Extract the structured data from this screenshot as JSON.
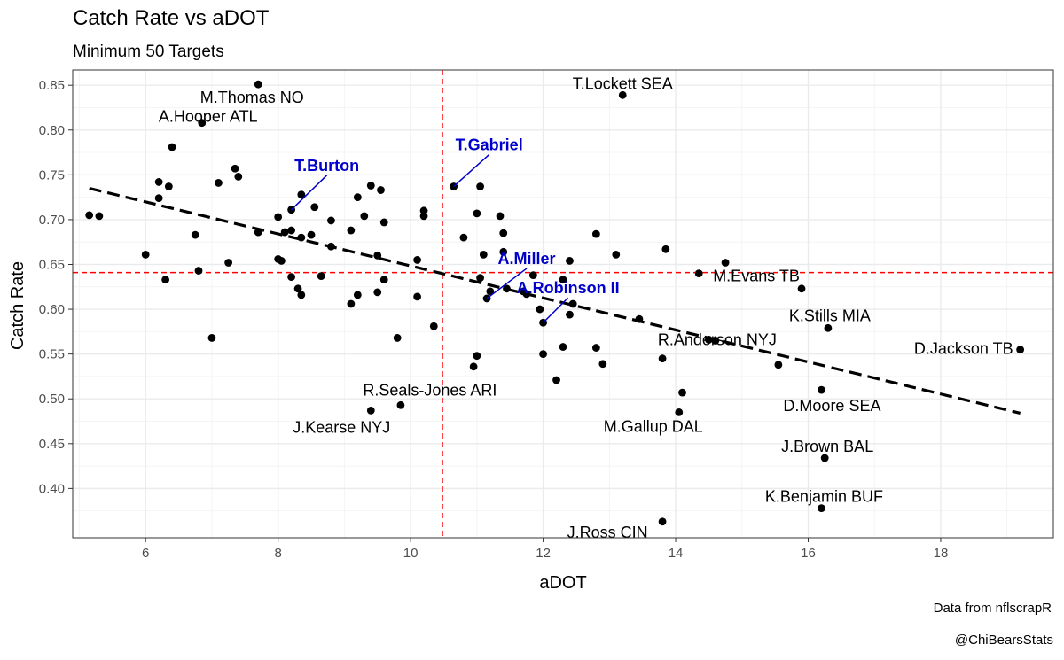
{
  "chart_data": {
    "type": "scatter",
    "title": "Catch Rate vs aDOT",
    "subtitle": "Minimum 50 Targets",
    "xlabel": "aDOT",
    "ylabel": "Catch Rate",
    "xlim": [
      4.9,
      19.7
    ],
    "ylim": [
      0.345,
      0.867
    ],
    "x_ticks": [
      6,
      8,
      10,
      12,
      14,
      16,
      18
    ],
    "y_ticks": [
      0.4,
      0.45,
      0.5,
      0.55,
      0.6,
      0.65,
      0.7,
      0.75,
      0.8,
      0.85
    ],
    "grid": true,
    "reference_lines": {
      "x_mean": 10.48,
      "y_mean": 0.641,
      "color": "#ff0000"
    },
    "trend_line": {
      "x": [
        5.15,
        19.2
      ],
      "y": [
        0.735,
        0.484
      ]
    },
    "points": [
      [
        7.7,
        0.851
      ],
      [
        6.85,
        0.808
      ],
      [
        6.4,
        0.781
      ],
      [
        7.35,
        0.757
      ],
      [
        7.4,
        0.748
      ],
      [
        6.2,
        0.742
      ],
      [
        6.35,
        0.737
      ],
      [
        7.1,
        0.741
      ],
      [
        6.2,
        0.724
      ],
      [
        5.15,
        0.705
      ],
      [
        5.3,
        0.704
      ],
      [
        6.0,
        0.661
      ],
      [
        6.3,
        0.633
      ],
      [
        6.8,
        0.643
      ],
      [
        6.75,
        0.683
      ],
      [
        7.0,
        0.568
      ],
      [
        7.25,
        0.652
      ],
      [
        7.7,
        0.686
      ],
      [
        8.2,
        0.711
      ],
      [
        8.0,
        0.703
      ],
      [
        8.1,
        0.686
      ],
      [
        8.2,
        0.688
      ],
      [
        8.35,
        0.728
      ],
      [
        8.55,
        0.714
      ],
      [
        8.0,
        0.656
      ],
      [
        8.05,
        0.654
      ],
      [
        8.35,
        0.68
      ],
      [
        8.5,
        0.683
      ],
      [
        8.2,
        0.636
      ],
      [
        8.3,
        0.623
      ],
      [
        8.35,
        0.616
      ],
      [
        8.65,
        0.637
      ],
      [
        8.8,
        0.699
      ],
      [
        8.8,
        0.67
      ],
      [
        9.1,
        0.688
      ],
      [
        9.2,
        0.725
      ],
      [
        9.3,
        0.704
      ],
      [
        9.4,
        0.738
      ],
      [
        9.55,
        0.733
      ],
      [
        9.5,
        0.66
      ],
      [
        9.6,
        0.697
      ],
      [
        9.6,
        0.633
      ],
      [
        9.5,
        0.619
      ],
      [
        9.2,
        0.616
      ],
      [
        9.1,
        0.606
      ],
      [
        9.8,
        0.568
      ],
      [
        10.1,
        0.655
      ],
      [
        10.2,
        0.71
      ],
      [
        10.2,
        0.704
      ],
      [
        10.1,
        0.614
      ],
      [
        10.35,
        0.581
      ],
      [
        10.65,
        0.737
      ],
      [
        11.05,
        0.737
      ],
      [
        10.8,
        0.68
      ],
      [
        11.0,
        0.707
      ],
      [
        11.1,
        0.661
      ],
      [
        11.35,
        0.704
      ],
      [
        11.4,
        0.685
      ],
      [
        11.4,
        0.664
      ],
      [
        11.05,
        0.635
      ],
      [
        11.15,
        0.612
      ],
      [
        11.45,
        0.623
      ],
      [
        11.2,
        0.62
      ],
      [
        11.7,
        0.62
      ],
      [
        11.75,
        0.617
      ],
      [
        11.85,
        0.638
      ],
      [
        11.95,
        0.6
      ],
      [
        12.0,
        0.585
      ],
      [
        12.3,
        0.633
      ],
      [
        12.4,
        0.654
      ],
      [
        12.4,
        0.594
      ],
      [
        12.45,
        0.606
      ],
      [
        12.8,
        0.684
      ],
      [
        13.1,
        0.661
      ],
      [
        12.0,
        0.55
      ],
      [
        12.3,
        0.558
      ],
      [
        12.8,
        0.557
      ],
      [
        12.9,
        0.539
      ],
      [
        11.0,
        0.548
      ],
      [
        10.95,
        0.536
      ],
      [
        12.2,
        0.521
      ],
      [
        13.45,
        0.589
      ],
      [
        13.85,
        0.667
      ],
      [
        14.35,
        0.64
      ],
      [
        14.75,
        0.652
      ],
      [
        13.8,
        0.545
      ],
      [
        14.5,
        0.566
      ],
      [
        14.6,
        0.565
      ],
      [
        15.55,
        0.538
      ],
      [
        15.9,
        0.623
      ],
      [
        16.3,
        0.579
      ],
      [
        14.1,
        0.507
      ],
      [
        14.05,
        0.485
      ],
      [
        16.2,
        0.51
      ],
      [
        9.85,
        0.493
      ],
      [
        9.4,
        0.487
      ],
      [
        16.25,
        0.434
      ],
      [
        16.2,
        0.378
      ],
      [
        13.8,
        0.363
      ],
      [
        19.2,
        0.555
      ],
      [
        13.2,
        0.839
      ]
    ],
    "labels": [
      {
        "text": "M.Thomas NO",
        "x": 7.7,
        "y": 0.851,
        "dx": -7,
        "dy": 21,
        "anchor": "middle",
        "highlight": false
      },
      {
        "text": "A.Hooper ATL",
        "x": 6.85,
        "y": 0.808,
        "dx": 7,
        "dy": -1,
        "anchor": "middle",
        "highlight": false
      },
      {
        "text": "T.Lockett SEA",
        "x": 13.2,
        "y": 0.839,
        "dx": 0,
        "dy": -7,
        "anchor": "middle",
        "highlight": false
      },
      {
        "text": "M.Evans TB",
        "x": 14.35,
        "y": 0.64,
        "dx": 16,
        "dy": 9,
        "anchor": "start",
        "highlight": false
      },
      {
        "text": "K.Stills MIA",
        "x": 16.3,
        "y": 0.579,
        "dx": 2,
        "dy": -8,
        "anchor": "middle",
        "highlight": false
      },
      {
        "text": "D.Jackson TB",
        "x": 19.2,
        "y": 0.555,
        "dx": -8,
        "dy": 5,
        "anchor": "end",
        "highlight": false
      },
      {
        "text": "R.Anderson NYJ",
        "x": 14.6,
        "y": 0.565,
        "dx": 2,
        "dy": 5,
        "anchor": "middle",
        "highlight": false
      },
      {
        "text": "D.Moore SEA",
        "x": 16.2,
        "y": 0.51,
        "dx": 12,
        "dy": 24,
        "anchor": "middle",
        "highlight": false
      },
      {
        "text": "J.Brown BAL",
        "x": 16.25,
        "y": 0.434,
        "dx": 3,
        "dy": -7,
        "anchor": "middle",
        "highlight": false
      },
      {
        "text": "K.Benjamin BUF",
        "x": 16.2,
        "y": 0.378,
        "dx": 3,
        "dy": -7,
        "anchor": "middle",
        "highlight": false
      },
      {
        "text": "J.Ross CIN",
        "x": 13.8,
        "y": 0.363,
        "dx": -62,
        "dy": 18,
        "anchor": "middle",
        "highlight": false
      },
      {
        "text": "M.Gallup DAL",
        "x": 14.05,
        "y": 0.485,
        "dx": -29,
        "dy": 22,
        "anchor": "middle",
        "highlight": false
      },
      {
        "text": "R.Seals-Jones ARI",
        "x": 9.85,
        "y": 0.493,
        "dx": 33,
        "dy": -11,
        "anchor": "middle",
        "highlight": false
      },
      {
        "text": "J.Kearse NYJ",
        "x": 9.4,
        "y": 0.487,
        "dx": -33,
        "dy": 25,
        "anchor": "middle",
        "highlight": false
      },
      {
        "text": "T.Burton",
        "x": 8.2,
        "y": 0.711,
        "dx": 40,
        "dy": -44,
        "anchor": "middle",
        "highlight": true,
        "leader": true
      },
      {
        "text": "T.Gabriel",
        "x": 10.65,
        "y": 0.737,
        "dx": 40,
        "dy": -41,
        "anchor": "middle",
        "highlight": true,
        "leader": true
      },
      {
        "text": "A.Miller",
        "x": 11.15,
        "y": 0.612,
        "dx": 45,
        "dy": -39,
        "anchor": "middle",
        "highlight": true,
        "leader": true
      },
      {
        "text": "A.Robinson II",
        "x": 12.0,
        "y": 0.585,
        "dx": 28,
        "dy": -33,
        "anchor": "middle",
        "highlight": true,
        "leader": true
      }
    ]
  },
  "caption": {
    "source": "Data from nflscrapR",
    "credit": "@ChiBearsStats"
  },
  "colors": {
    "highlight": "#0000cc",
    "reference": "#ff0000",
    "grid_major": "#ebebeb",
    "grid_minor": "#f4f4f4",
    "panel_border": "#333333"
  }
}
